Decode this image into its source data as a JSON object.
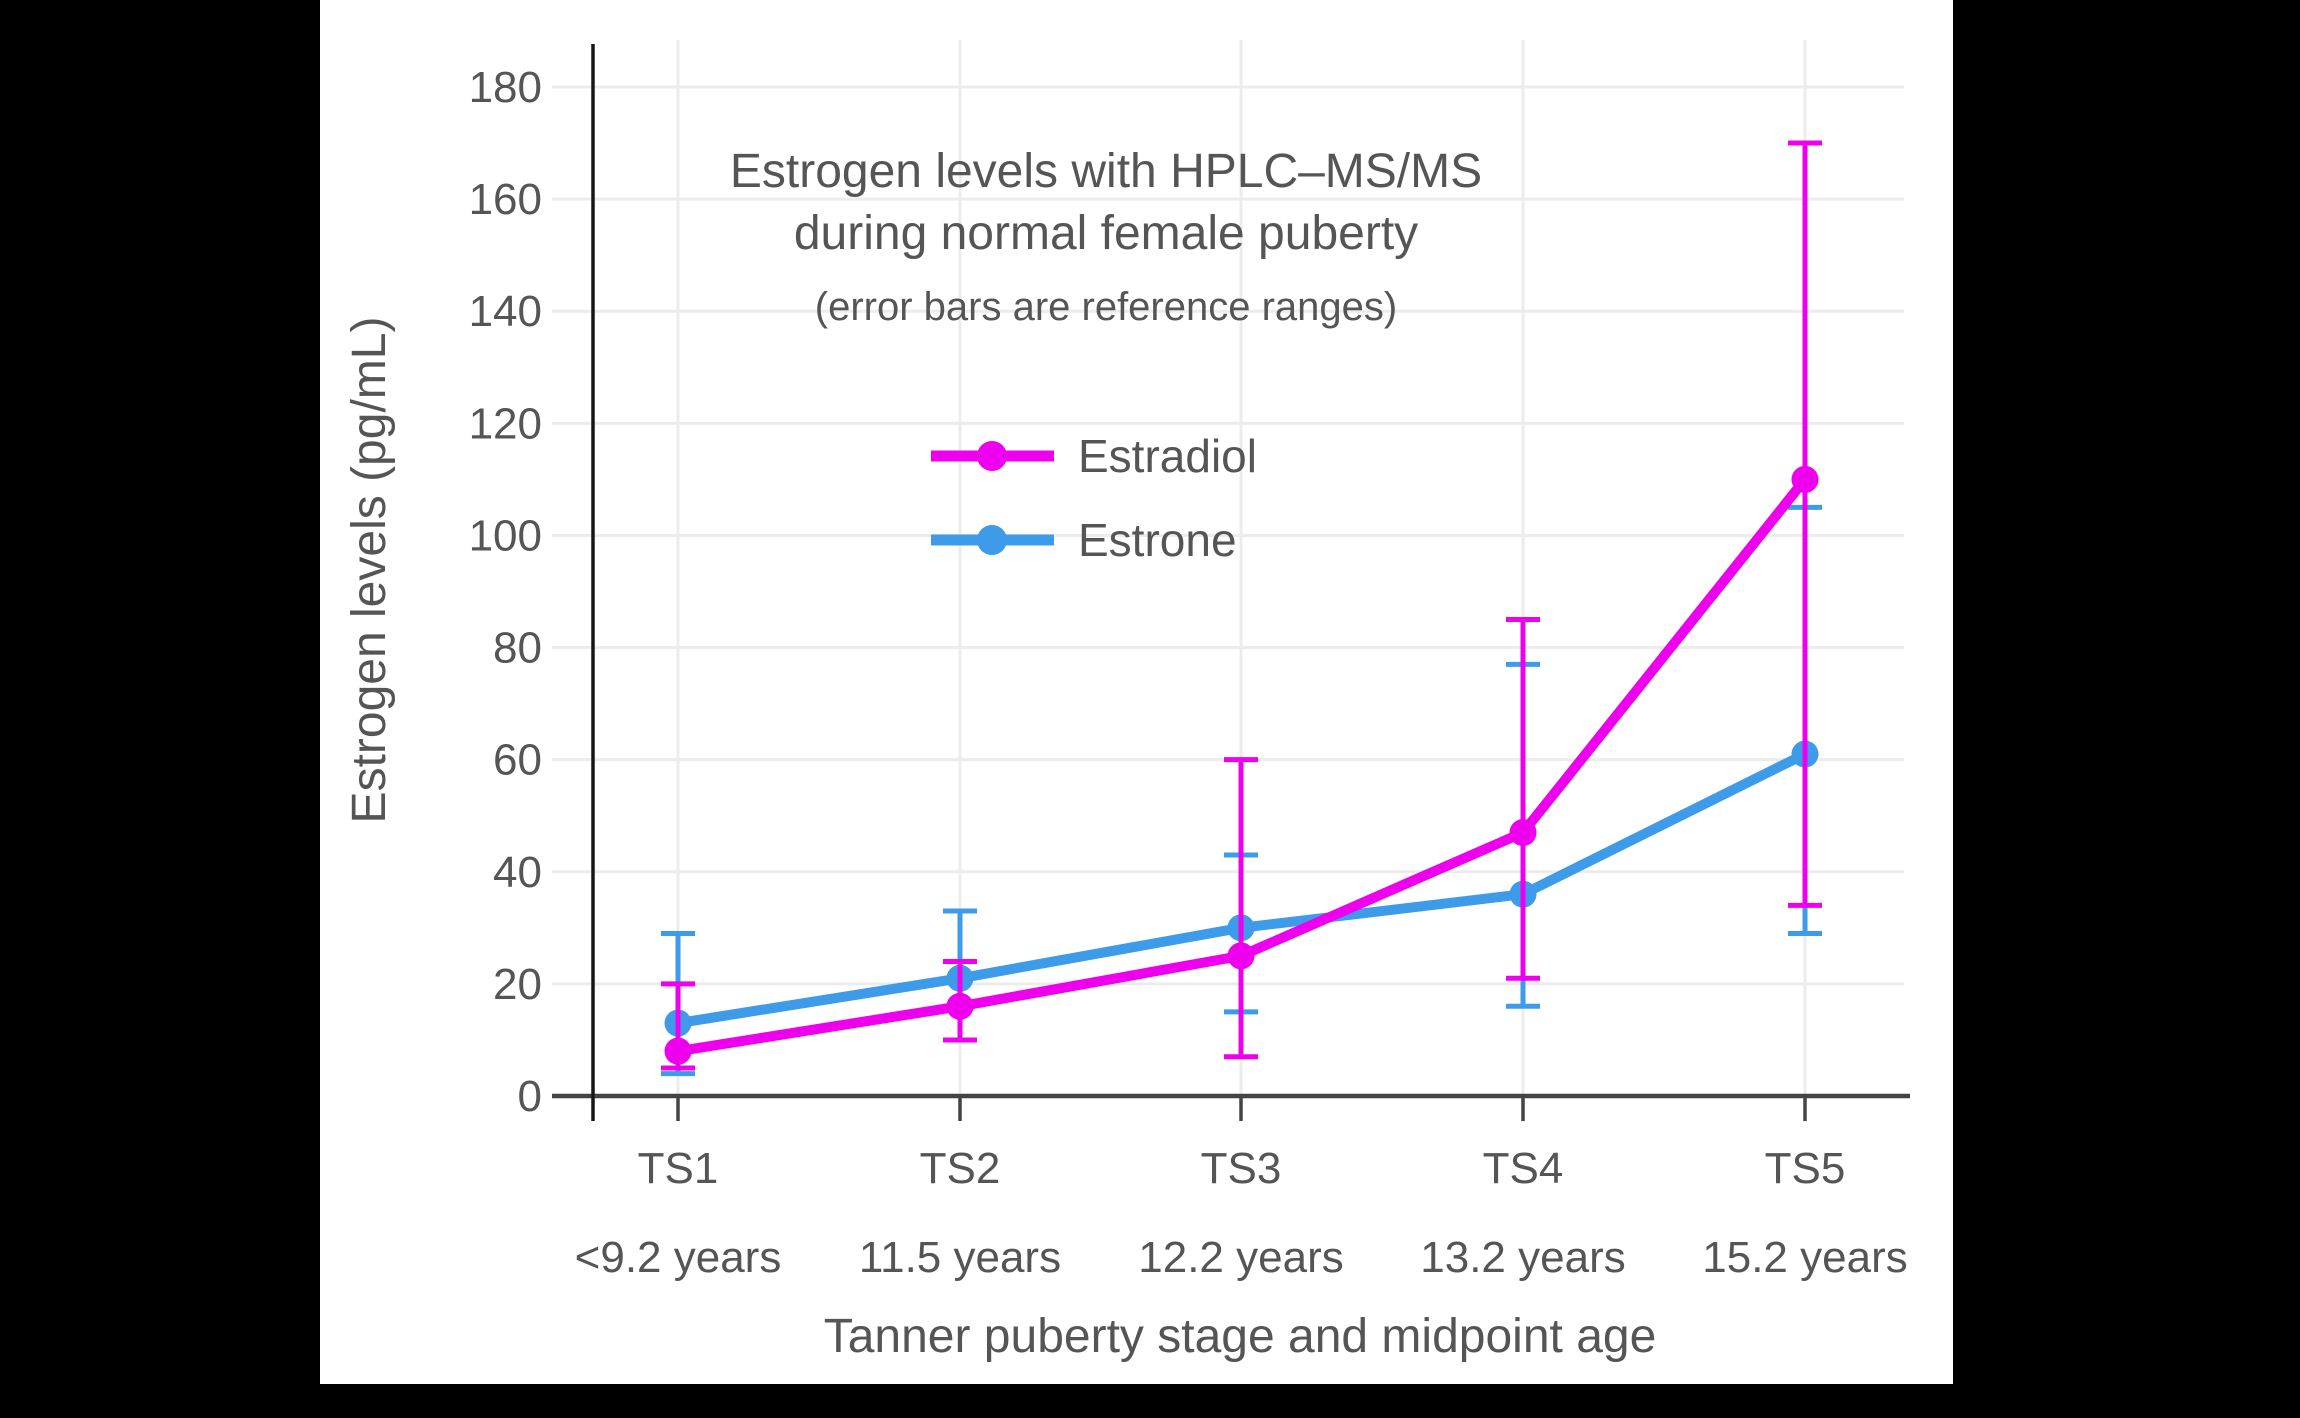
{
  "page": {
    "background": "#000000",
    "canvas_background": "#ffffff"
  },
  "chart_data": {
    "type": "line",
    "title_line1": "Estrogen levels with HPLC–MS/MS",
    "title_line2": "during normal female puberty",
    "subtitle": "(error bars are reference ranges)",
    "xlabel": "Tanner puberty stage and midpoint age",
    "ylabel": "Estrogen levels (pg/mL)",
    "categories": [
      "TS1",
      "TS2",
      "TS3",
      "TS4",
      "TS5"
    ],
    "category_ages": [
      "<9.2 years",
      "11.5 years",
      "12.2 years",
      "13.2 years",
      "15.2 years"
    ],
    "y_ticks": [
      0,
      20,
      40,
      60,
      80,
      100,
      120,
      140,
      160,
      180
    ],
    "ylim": [
      0,
      188
    ],
    "grid": true,
    "legend_position": "inside-top-center",
    "legend": [
      "Estradiol",
      "Estrone"
    ],
    "series": [
      {
        "name": "Estrone",
        "color": "#3E9BE9",
        "values": [
          13,
          21,
          30,
          36,
          61
        ],
        "error_low": [
          4,
          10,
          15,
          16,
          29
        ],
        "error_high": [
          29,
          33,
          43,
          77,
          105
        ]
      },
      {
        "name": "Estradiol",
        "color": "#EE00EE",
        "values": [
          8,
          16,
          25,
          47,
          110
        ],
        "error_low": [
          5,
          10,
          7,
          21,
          34
        ],
        "error_high": [
          20,
          24,
          60,
          85,
          170
        ]
      }
    ],
    "colors": {
      "x_axis": "#444444",
      "y_axis": "#161616",
      "grid": "#ececec",
      "text": "#555555"
    }
  }
}
